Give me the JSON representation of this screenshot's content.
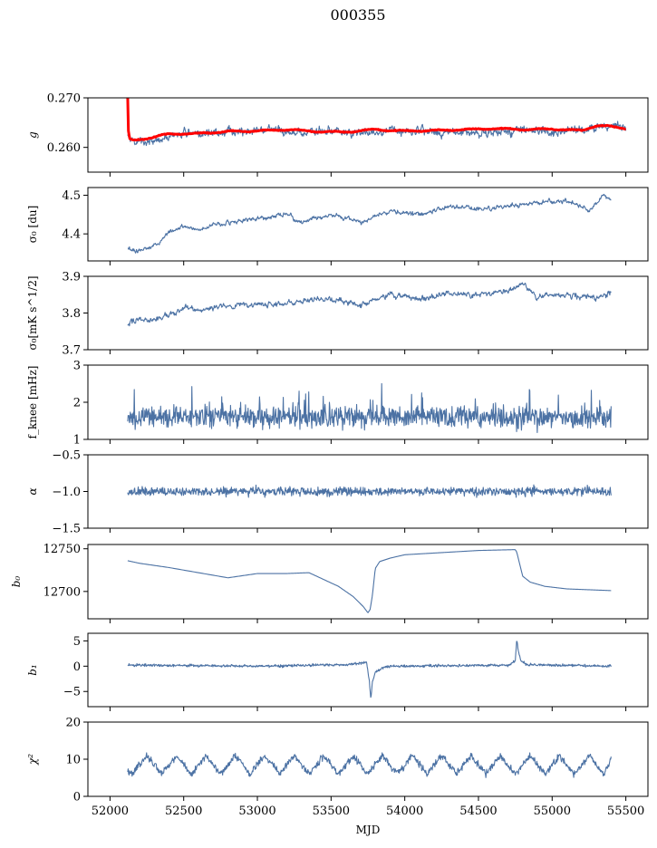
{
  "figure": {
    "title": "000355"
  },
  "colors": {
    "series": "#4c72a4",
    "fit": "#ff0000",
    "frame": "#000000"
  },
  "chart_data": {
    "type": "line",
    "title": "000355",
    "xlabel": "MJD",
    "xlim": [
      51850,
      55650
    ],
    "xticks": [
      52000,
      52500,
      53000,
      53500,
      54000,
      54500,
      55000,
      55500
    ],
    "xtick_labels": [
      "52000",
      "52500",
      "53000",
      "53500",
      "54000",
      "54500",
      "55000",
      "55500"
    ],
    "panels": [
      {
        "id": "g",
        "ylabel": "g",
        "ylim": [
          0.255,
          0.27
        ],
        "yticks": [
          0.26,
          0.27
        ],
        "ytick_labels": [
          "0.260",
          "0.270"
        ],
        "series": [
          {
            "style": "noisy",
            "x": [
              52120,
              52150,
              52200,
              52300,
              52500,
              52800,
              53000,
              53300,
              53500,
              53700,
              53900,
              54200,
              54600,
              54800,
              55000,
              55200,
              55300,
              55400,
              55500
            ],
            "values": [
              0.2625,
              0.2615,
              0.261,
              0.2615,
              0.2625,
              0.263,
              0.2635,
              0.263,
              0.2635,
              0.2628,
              0.2635,
              0.2632,
              0.263,
              0.2635,
              0.2632,
              0.2638,
              0.264,
              0.2645,
              0.264
            ]
          },
          {
            "style": "fit",
            "x": [
              52120,
              52125,
              52135,
              52160,
              52250,
              52400,
              52600,
              52800,
              53000,
              53200,
              53400,
              53600,
              53800,
              54000,
              54200,
              54400,
              54600,
              54800,
              55000,
              55200,
              55300,
              55400,
              55500
            ],
            "values": [
              0.27,
              0.263,
              0.2615,
              0.2614,
              0.2618,
              0.2627,
              0.2628,
              0.2632,
              0.2633,
              0.2636,
              0.2632,
              0.2631,
              0.2636,
              0.2633,
              0.2634,
              0.2636,
              0.2638,
              0.2636,
              0.2637,
              0.2634,
              0.2644,
              0.2642,
              0.2638
            ]
          }
        ]
      },
      {
        "id": "sigma0-du",
        "ylabel": "σ₀ [du]",
        "ylim": [
          4.33,
          4.52
        ],
        "yticks": [
          4.4,
          4.5
        ],
        "ytick_labels": [
          "4.4",
          "4.5"
        ],
        "series": [
          {
            "style": "noisy",
            "x": [
              52120,
              52200,
              52300,
              52400,
              52500,
              52600,
              52800,
              53000,
              53200,
              53300,
              53500,
              53700,
              53900,
              54100,
              54300,
              54500,
              54700,
              54900,
              55100,
              55250,
              55350,
              55400
            ],
            "values": [
              4.36,
              4.355,
              4.37,
              4.405,
              4.42,
              4.41,
              4.43,
              4.44,
              4.45,
              4.43,
              4.45,
              4.43,
              4.46,
              4.45,
              4.47,
              4.465,
              4.47,
              4.48,
              4.485,
              4.46,
              4.5,
              4.49
            ]
          }
        ]
      },
      {
        "id": "sigma0-mk",
        "ylabel": "σ₀[mK s^1/2]",
        "ylim": [
          3.7,
          3.9
        ],
        "yticks": [
          3.7,
          3.8,
          3.9
        ],
        "ytick_labels": [
          "3.7",
          "3.8",
          "3.9"
        ],
        "series": [
          {
            "style": "noisy",
            "x": [
              52120,
              52200,
              52300,
              52500,
              52700,
              52900,
              53100,
              53300,
              53500,
              53700,
              53900,
              54100,
              54300,
              54500,
              54700,
              54800,
              54900,
              55100,
              55300,
              55400
            ],
            "values": [
              3.77,
              3.785,
              3.78,
              3.81,
              3.815,
              3.82,
              3.825,
              3.83,
              3.84,
              3.82,
              3.85,
              3.84,
              3.85,
              3.85,
              3.86,
              3.88,
              3.845,
              3.85,
              3.84,
              3.855
            ]
          }
        ]
      },
      {
        "id": "fknee",
        "ylabel": "f_knee [mHz]",
        "ylim": [
          1,
          3
        ],
        "yticks": [
          1,
          2,
          3
        ],
        "ytick_labels": [
          "1",
          "2",
          "3"
        ],
        "series": [
          {
            "style": "noisy",
            "x": [
              52120,
              55400
            ],
            "values": [
              1.6,
              1.6
            ]
          }
        ]
      },
      {
        "id": "alpha",
        "ylabel": "α",
        "ylim": [
          -1.5,
          -0.5
        ],
        "yticks": [
          -1.5,
          -1.0,
          -0.5
        ],
        "ytick_labels": [
          "−1.5",
          "−1.0",
          "−0.5"
        ],
        "series": [
          {
            "style": "noisy",
            "x": [
              52120,
              55400
            ],
            "values": [
              -1.0,
              -1.0
            ]
          }
        ]
      },
      {
        "id": "b0",
        "ylabel": "b₀",
        "ylim": [
          12668,
          12755
        ],
        "yticks": [
          12700,
          12750
        ],
        "ytick_labels": [
          "12700",
          "12750"
        ],
        "series": [
          {
            "style": "smooth",
            "x": [
              52120,
              52200,
              52400,
              52600,
              52800,
              53000,
              53200,
              53350,
              53450,
              53550,
              53650,
              53720,
              53750,
              53765,
              53780,
              53800,
              53830,
              53900,
              54000,
              54300,
              54500,
              54750,
              54760,
              54800,
              54850,
              54950,
              55100,
              55400
            ],
            "values": [
              12736,
              12733,
              12728,
              12722,
              12716,
              12721,
              12721,
              12722,
              12714,
              12706,
              12694,
              12682,
              12675,
              12679,
              12695,
              12727,
              12735,
              12739,
              12743,
              12746,
              12748,
              12749,
              12746,
              12718,
              12711,
              12706,
              12703,
              12701
            ]
          }
        ]
      },
      {
        "id": "b1",
        "ylabel": "b₁",
        "ylim": [
          -8,
          6.5
        ],
        "yticks": [
          -5,
          0,
          5
        ],
        "ytick_labels": [
          "−5",
          "0",
          "5"
        ],
        "series": [
          {
            "style": "noisy",
            "x": [
              52120,
              53000,
              53600,
              53700,
              53740,
              53760,
              53770,
              53780,
              53800,
              53850,
              53900,
              54700,
              54750,
              54760,
              54770,
              54790,
              54830,
              55400
            ],
            "values": [
              0.2,
              0.0,
              0.3,
              0.6,
              0.8,
              -3.0,
              -6.5,
              -3.0,
              -1.2,
              -0.3,
              0.0,
              0.2,
              1.0,
              5.5,
              3.0,
              1.0,
              0.3,
              0.0
            ]
          }
        ]
      },
      {
        "id": "chi2",
        "ylabel": "χ²",
        "ylim": [
          0,
          20
        ],
        "yticks": [
          0,
          10,
          20
        ],
        "ytick_labels": [
          "0",
          "10",
          "20"
        ],
        "series": [
          {
            "style": "noisy",
            "x": [
              52120,
              52150,
              52250,
              52350,
              52450,
              52550,
              52650,
              52750,
              52850,
              52950,
              53050,
              53150,
              53250,
              53350,
              53450,
              53550,
              53650,
              53750,
              53850,
              53950,
              54050,
              54150,
              54250,
              54350,
              54450,
              54550,
              54650,
              54750,
              54850,
              54950,
              55050,
              55150,
              55250,
              55350,
              55400
            ],
            "values": [
              7,
              6,
              11,
              6,
              11,
              6,
              11,
              6,
              11,
              6,
              11,
              6,
              11,
              6,
              11,
              6,
              11,
              6,
              11,
              6,
              11,
              6,
              11,
              6,
              11,
              6,
              11,
              6,
              11,
              6,
              11,
              6,
              11,
              6,
              10
            ]
          }
        ]
      }
    ]
  }
}
